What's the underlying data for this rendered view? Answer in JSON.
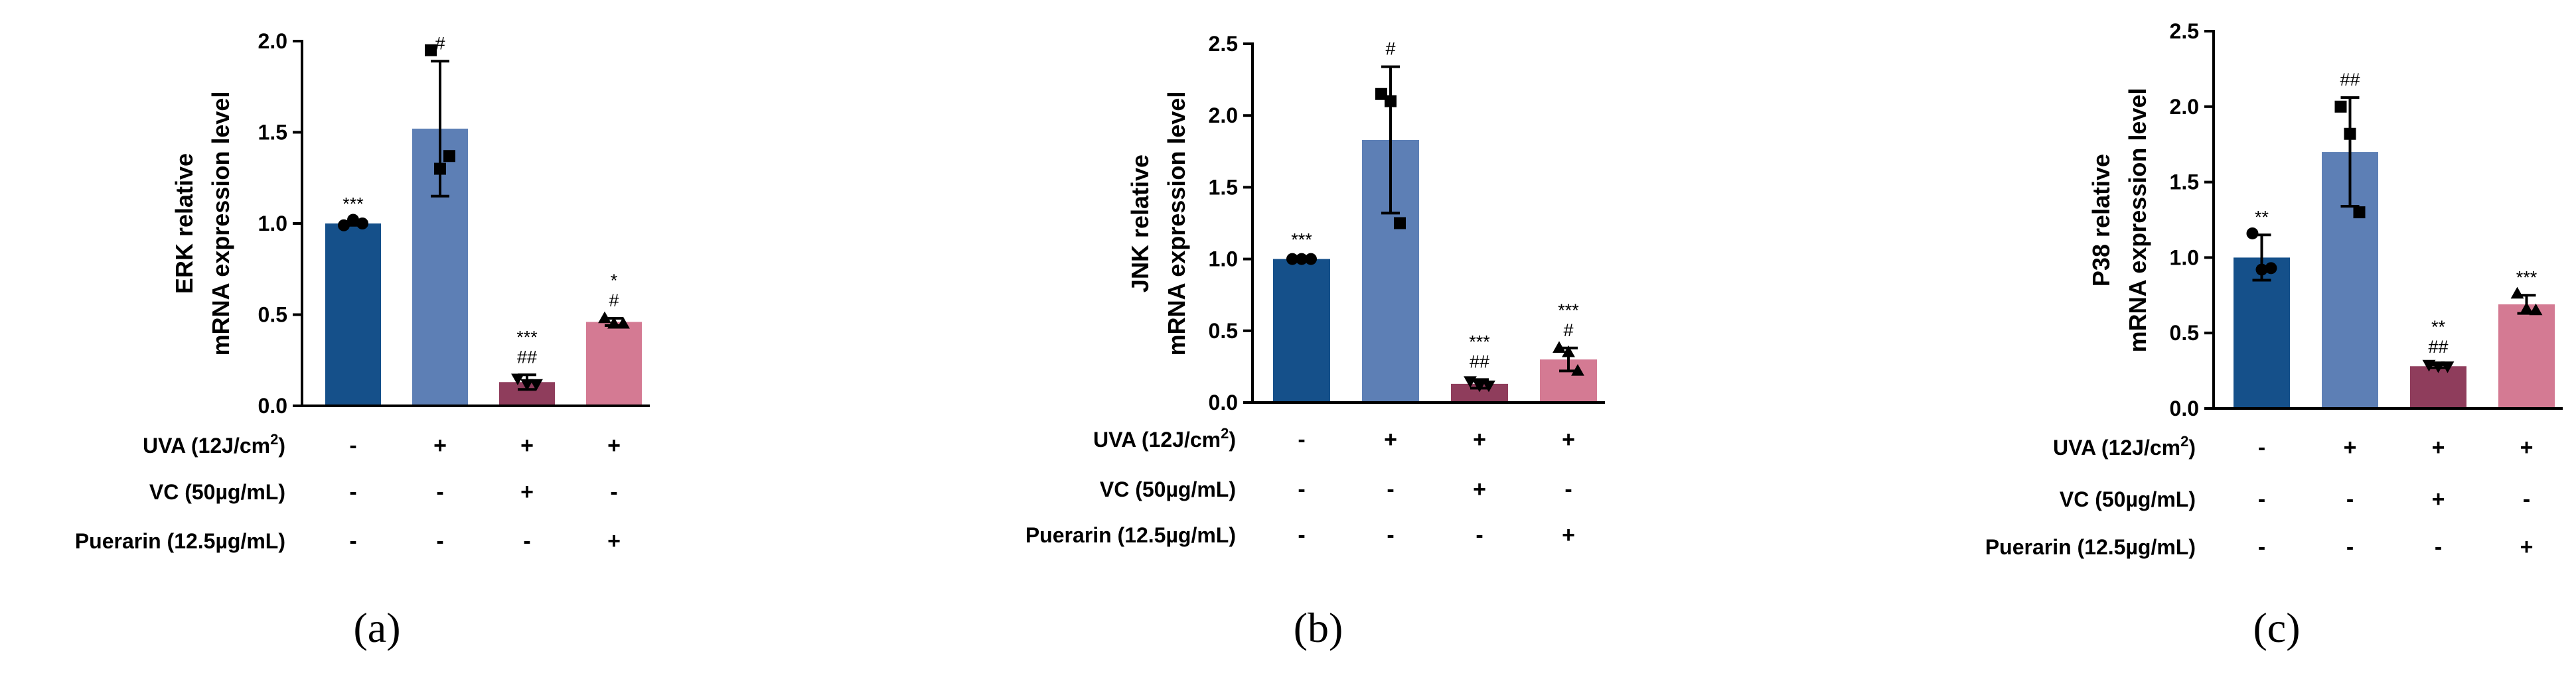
{
  "chart_data": [
    {
      "type": "bar",
      "panel_label": "(a)",
      "ylabel": [
        "ERK relative",
        "mRNA expression level"
      ],
      "ylim": [
        0,
        2.0
      ],
      "yticks": [
        0.0,
        0.5,
        1.0,
        1.5,
        2.0
      ],
      "yticklabels": [
        "0.0",
        "0.5",
        "1.0",
        "1.5",
        "2.0"
      ],
      "treatments": [
        {
          "name": "UVA",
          "label": "UVA (12J/cm",
          "sup": "2",
          "suffix": ")",
          "signs": [
            "-",
            "+",
            "+",
            "+"
          ]
        },
        {
          "name": "VC",
          "label": "VC (50µg/mL)",
          "signs": [
            "-",
            "-",
            "+",
            "-"
          ]
        },
        {
          "name": "Puerarin",
          "label": "Puerarin (12.5µg/mL)",
          "signs": [
            "-",
            "-",
            "-",
            "+"
          ]
        }
      ],
      "bars": [
        {
          "value": 1.0,
          "error": 0.01,
          "points": [
            0.99,
            1.02,
            1.0
          ],
          "marker": "circle",
          "color": "#15508A",
          "annotations": [
            "***"
          ]
        },
        {
          "value": 1.52,
          "error": 0.37,
          "points": [
            1.95,
            1.3,
            1.37
          ],
          "marker": "square",
          "color": "#5D7FB5",
          "annotations": [
            "#"
          ]
        },
        {
          "value": 0.13,
          "error": 0.04,
          "points": [
            0.15,
            0.12,
            0.12
          ],
          "marker": "triangle-down",
          "color": "#8F3D5C",
          "annotations": [
            "***",
            "##"
          ]
        },
        {
          "value": 0.46,
          "error": 0.02,
          "points": [
            0.48,
            0.45,
            0.45
          ],
          "marker": "triangle-up",
          "color": "#D47A93",
          "annotations": [
            "*",
            "#"
          ]
        }
      ]
    },
    {
      "type": "bar",
      "panel_label": "(b)",
      "ylabel": [
        "JNK relative",
        "mRNA expression level"
      ],
      "ylim": [
        0,
        2.5
      ],
      "yticks": [
        0.0,
        0.5,
        1.0,
        1.5,
        2.0,
        2.5
      ],
      "yticklabels": [
        "0.0",
        "0.5",
        "1.0",
        "1.5",
        "2.0",
        "2.5"
      ],
      "treatments": [
        {
          "name": "UVA",
          "label": "UVA (12J/cm",
          "sup": "2",
          "suffix": ")",
          "signs": [
            "-",
            "+",
            "+",
            "+"
          ]
        },
        {
          "name": "VC",
          "label": "VC (50µg/mL)",
          "signs": [
            "-",
            "-",
            "+",
            "-"
          ]
        },
        {
          "name": "Puerarin",
          "label": "Puerarin (12.5µg/mL)",
          "signs": [
            "-",
            "-",
            "-",
            "+"
          ]
        }
      ],
      "bars": [
        {
          "value": 1.0,
          "error": 0.01,
          "points": [
            1.0,
            1.0,
            1.0
          ],
          "marker": "circle",
          "color": "#15508A",
          "annotations": [
            "***"
          ]
        },
        {
          "value": 1.83,
          "error": 0.51,
          "points": [
            2.15,
            2.1,
            1.25
          ],
          "marker": "square",
          "color": "#5D7FB5",
          "annotations": [
            "#"
          ]
        },
        {
          "value": 0.13,
          "error": 0.03,
          "points": [
            0.15,
            0.12,
            0.12
          ],
          "marker": "triangle-down",
          "color": "#8F3D5C",
          "annotations": [
            "***",
            "##"
          ]
        },
        {
          "value": 0.3,
          "error": 0.08,
          "points": [
            0.38,
            0.35,
            0.22
          ],
          "marker": "triangle-up",
          "color": "#D47A93",
          "annotations": [
            "***",
            "#"
          ]
        }
      ]
    },
    {
      "type": "bar",
      "panel_label": "(c)",
      "ylabel": [
        "P38 relative",
        "mRNA expression level"
      ],
      "ylim": [
        0,
        2.5
      ],
      "yticks": [
        0.0,
        0.5,
        1.0,
        1.5,
        2.0,
        2.5
      ],
      "yticklabels": [
        "0.0",
        "0.5",
        "1.0",
        "1.5",
        "2.0",
        "2.5"
      ],
      "treatments": [
        {
          "name": "UVA",
          "label": "UVA (12J/cm",
          "sup": "2",
          "suffix": ")",
          "signs": [
            "-",
            "+",
            "+",
            "+"
          ]
        },
        {
          "name": "VC",
          "label": "VC (50µg/mL)",
          "signs": [
            "-",
            "-",
            "+",
            "-"
          ]
        },
        {
          "name": "Puerarin",
          "label": "Puerarin (12.5µg/mL)",
          "signs": [
            "-",
            "-",
            "-",
            "+"
          ]
        }
      ],
      "bars": [
        {
          "value": 1.0,
          "error": 0.15,
          "points": [
            1.16,
            0.92,
            0.93
          ],
          "marker": "circle",
          "color": "#15508A",
          "annotations": [
            "**"
          ]
        },
        {
          "value": 1.7,
          "error": 0.36,
          "points": [
            2.0,
            1.82,
            1.3
          ],
          "marker": "square",
          "color": "#5D7FB5",
          "annotations": [
            "##"
          ]
        },
        {
          "value": 0.28,
          "error": 0.01,
          "points": [
            0.29,
            0.28,
            0.28
          ],
          "marker": "triangle-down",
          "color": "#8F3D5C",
          "annotations": [
            "**",
            "##"
          ]
        },
        {
          "value": 0.69,
          "error": 0.06,
          "points": [
            0.76,
            0.66,
            0.65
          ],
          "marker": "triangle-up",
          "color": "#D47A93",
          "annotations": [
            "***"
          ]
        }
      ]
    }
  ]
}
